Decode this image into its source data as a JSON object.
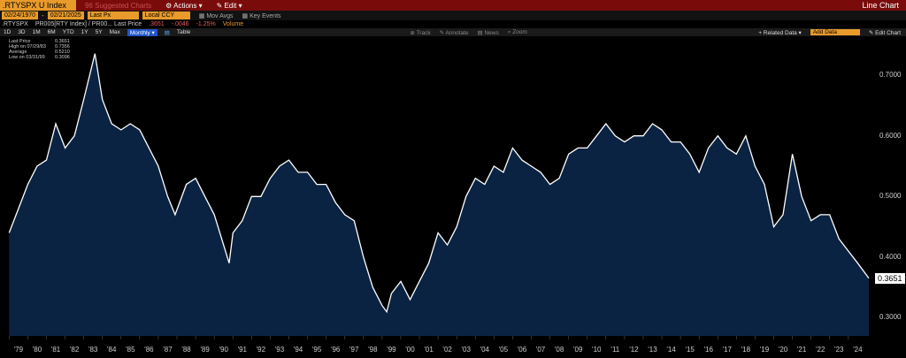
{
  "toolbar": {
    "ticker": ".RTYSPX U Index",
    "suggested": "96 Suggested Charts",
    "actions": "Actions",
    "edit": "Edit",
    "chart_type": "Line Chart",
    "start_date": "02/24/1970",
    "end_date": "02/21/2025",
    "field": "Last Px",
    "currency": "Local CCY",
    "mov_avgs": "Mov Avgs",
    "key_events": "Key Events",
    "series_name": ".RTYSPX",
    "series_desc": "PR005[RTY Index] /  PR00...  Last Price",
    "series_last": ".3651",
    "series_change": "-.0046",
    "series_pct": "-1.25%",
    "volume": "Volume",
    "periods": [
      "1D",
      "3D",
      "1M",
      "6M",
      "YTD",
      "1Y",
      "5Y",
      "Max"
    ],
    "freq": "Monthly",
    "table": "Table",
    "track": "Track",
    "annotate": "Annotate",
    "news": "News",
    "zoom": "Zoom",
    "related": "Related Data",
    "add_data": "Add Data",
    "edit_chart": "Edit Chart"
  },
  "legend": {
    "rows": [
      {
        "label": "Last Price",
        "value": "0.3651"
      },
      {
        "label": "High on 07/29/83",
        "value": "0.7356"
      },
      {
        "label": "Average",
        "value": "0.5210"
      },
      {
        "label": "Low on 03/31/99",
        "value": "0.3096"
      }
    ]
  },
  "chart_data": {
    "type": "area",
    "xlabel": "",
    "ylabel": "",
    "ylim": [
      0.27,
      0.76
    ],
    "yticks": [
      "0.7000",
      "0.6000",
      "0.5000",
      "0.4000",
      "0.3000"
    ],
    "xtick_labels": [
      "'79",
      "'80",
      "'81",
      "'82",
      "'83",
      "'84",
      "'85",
      "'86",
      "'87",
      "'88",
      "'89",
      "'90",
      "'91",
      "'92",
      "'93",
      "'94",
      "'95",
      "'96",
      "'97",
      "'98",
      "'99",
      "'00",
      "'01",
      "'02",
      "'03",
      "'04",
      "'05",
      "'06",
      "'07",
      "'08",
      "'09",
      "'10",
      "'11",
      "'12",
      "'13",
      "'14",
      "'15",
      "'16",
      "'17",
      "'18",
      "'19",
      "'20",
      "'21",
      "'22",
      "'23",
      "'24"
    ],
    "last_value_label": "0.3651",
    "x": [
      1979.0,
      1979.5,
      1980.0,
      1980.5,
      1981.0,
      1981.5,
      1982.0,
      1982.5,
      1983.0,
      1983.6,
      1984.0,
      1984.5,
      1985.0,
      1985.5,
      1986.0,
      1986.5,
      1987.0,
      1987.5,
      1987.9,
      1988.5,
      1989.0,
      1989.5,
      1990.0,
      1990.8,
      1991.0,
      1991.5,
      1992.0,
      1992.5,
      1993.0,
      1993.5,
      1994.0,
      1994.5,
      1995.0,
      1995.5,
      1996.0,
      1996.5,
      1997.0,
      1997.5,
      1998.0,
      1998.5,
      1999.0,
      1999.25,
      1999.5,
      2000.0,
      2000.5,
      2001.0,
      2001.5,
      2002.0,
      2002.5,
      2003.0,
      2003.5,
      2004.0,
      2004.5,
      2005.0,
      2005.5,
      2006.0,
      2006.5,
      2007.0,
      2007.5,
      2008.0,
      2008.5,
      2009.0,
      2009.5,
      2010.0,
      2010.5,
      2011.0,
      2011.5,
      2012.0,
      2012.5,
      2013.0,
      2013.5,
      2014.0,
      2014.5,
      2015.0,
      2015.5,
      2016.0,
      2016.5,
      2017.0,
      2017.5,
      2018.0,
      2018.5,
      2019.0,
      2019.5,
      2020.0,
      2020.5,
      2021.0,
      2021.5,
      2022.0,
      2022.5,
      2023.0,
      2023.5,
      2024.0,
      2024.5,
      2025.1
    ],
    "values": [
      0.44,
      0.48,
      0.52,
      0.55,
      0.56,
      0.62,
      0.58,
      0.6,
      0.66,
      0.7356,
      0.66,
      0.62,
      0.61,
      0.62,
      0.61,
      0.58,
      0.55,
      0.5,
      0.47,
      0.52,
      0.53,
      0.5,
      0.47,
      0.39,
      0.44,
      0.46,
      0.5,
      0.5,
      0.53,
      0.55,
      0.56,
      0.54,
      0.54,
      0.52,
      0.52,
      0.49,
      0.47,
      0.46,
      0.4,
      0.35,
      0.32,
      0.3096,
      0.34,
      0.36,
      0.33,
      0.36,
      0.39,
      0.44,
      0.42,
      0.45,
      0.5,
      0.53,
      0.52,
      0.55,
      0.54,
      0.58,
      0.56,
      0.55,
      0.54,
      0.52,
      0.53,
      0.57,
      0.58,
      0.58,
      0.6,
      0.62,
      0.6,
      0.59,
      0.6,
      0.6,
      0.62,
      0.61,
      0.59,
      0.59,
      0.57,
      0.54,
      0.58,
      0.6,
      0.58,
      0.57,
      0.6,
      0.55,
      0.52,
      0.45,
      0.47,
      0.57,
      0.5,
      0.46,
      0.47,
      0.47,
      0.43,
      0.41,
      0.39,
      0.3651
    ]
  }
}
